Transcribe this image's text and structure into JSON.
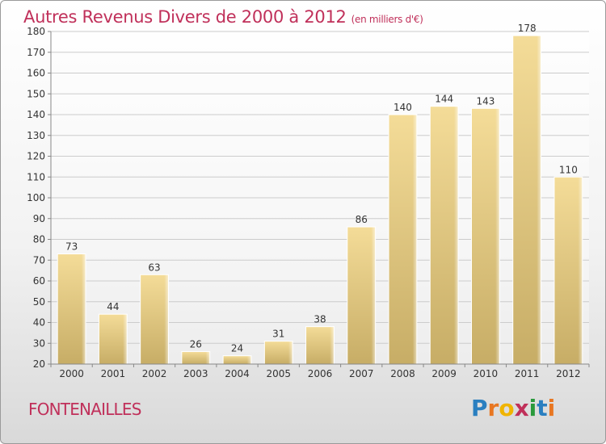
{
  "title": "Autres Revenus Divers de 2000 à 2012",
  "subtitle": "(en milliers d'€)",
  "commune": "FONTENAILLES",
  "brand": {
    "letters": [
      "P",
      "r",
      "o",
      "x",
      "i",
      "t",
      "i"
    ],
    "colors": [
      "#2a7fc0",
      "#e87722",
      "#f0b400",
      "#c0305a",
      "#2a9a3c",
      "#2a7fc0",
      "#e87722"
    ]
  },
  "colors": {
    "title": "#c0305a",
    "bar_light": "#f4dc98",
    "bar_dark": "#c7ad66",
    "grid": "#cccccc",
    "axis": "#888888"
  },
  "chart_data": {
    "type": "bar",
    "categories": [
      "2000",
      "2001",
      "2002",
      "2003",
      "2004",
      "2005",
      "2006",
      "2007",
      "2008",
      "2009",
      "2010",
      "2011",
      "2012"
    ],
    "values": [
      73,
      44,
      63,
      26,
      24,
      31,
      38,
      86,
      140,
      144,
      143,
      178,
      110
    ],
    "title": "Autres Revenus Divers de 2000 à 2012",
    "subtitle": "(en milliers d'€)",
    "ylim": [
      20,
      180
    ],
    "yticks": [
      20,
      30,
      40,
      50,
      60,
      70,
      80,
      90,
      100,
      110,
      120,
      130,
      140,
      150,
      160,
      170,
      180
    ],
    "grid": true,
    "data_labels": true
  }
}
